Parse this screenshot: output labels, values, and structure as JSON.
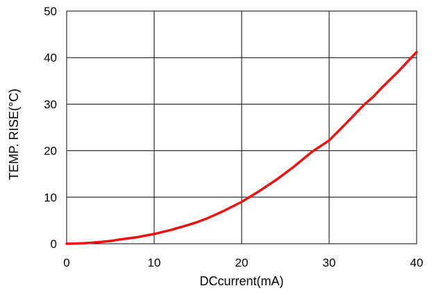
{
  "chart_data": {
    "type": "line",
    "title": "",
    "xlabel": "DCcurrent(mA)",
    "ylabel": "TEMP. RISE(°C)",
    "xlim": [
      0,
      40
    ],
    "ylim": [
      0,
      50
    ],
    "xticks": [
      0,
      10,
      20,
      30,
      40
    ],
    "yticks": [
      0,
      10,
      20,
      30,
      40,
      50
    ],
    "grid": true,
    "legend": "none",
    "series": [
      {
        "color": "#ee1111",
        "x": [
          0,
          2,
          4,
          5,
          6,
          8,
          10,
          12,
          14,
          15,
          16,
          18,
          20,
          22,
          24,
          25,
          26,
          28,
          30,
          32,
          34,
          35,
          36,
          38,
          40
        ],
        "y": [
          0,
          0.1,
          0.4,
          0.6,
          0.9,
          1.4,
          2.1,
          3.0,
          4.1,
          4.7,
          5.4,
          7.1,
          9.0,
          11.3,
          13.8,
          15.2,
          16.6,
          19.7,
          22.2,
          26.0,
          29.9,
          31.5,
          33.5,
          37.2,
          41.2
        ]
      }
    ]
  }
}
